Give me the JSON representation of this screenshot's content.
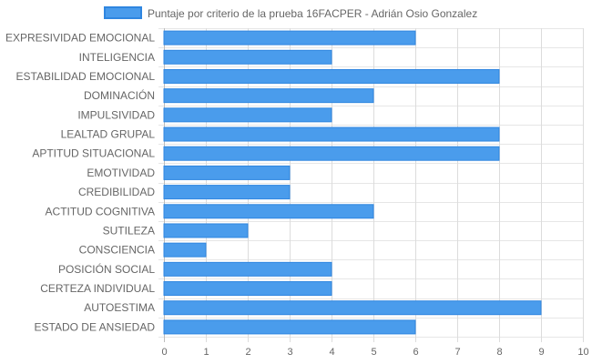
{
  "chart_data": {
    "type": "bar",
    "orientation": "horizontal",
    "legend_position": "top",
    "grid": true,
    "xlim": [
      0,
      10
    ],
    "ticks": [
      "0",
      "1",
      "2",
      "3",
      "4",
      "5",
      "6",
      "7",
      "8",
      "9",
      "10"
    ],
    "categories": [
      "EXPRESIVIDAD EMOCIONAL",
      "INTELIGENCIA",
      "ESTABILIDAD EMOCIONAL",
      "DOMINACIÓN",
      "IMPULSIVIDAD",
      "LEALTAD GRUPAL",
      "APTITUD SITUACIONAL",
      "EMOTIVIDAD",
      "CREDIBILIDAD",
      "ACTITUD COGNITIVA",
      "SUTILEZA",
      "CONSCIENCIA",
      "POSICIÓN SOCIAL",
      "CERTEZA INDIVIDUAL",
      "AUTOESTIMA",
      "ESTADO DE ANSIEDAD"
    ],
    "series": [
      {
        "name": "Puntaje por criterio de la prueba 16FACPER - Adrián Osio Gonzalez",
        "color": "#4a9cec",
        "border_color": "#2f86e0",
        "values": [
          6,
          4,
          8,
          5,
          4,
          8,
          8,
          3,
          3,
          5,
          2,
          1,
          4,
          4,
          9,
          6
        ]
      }
    ]
  }
}
